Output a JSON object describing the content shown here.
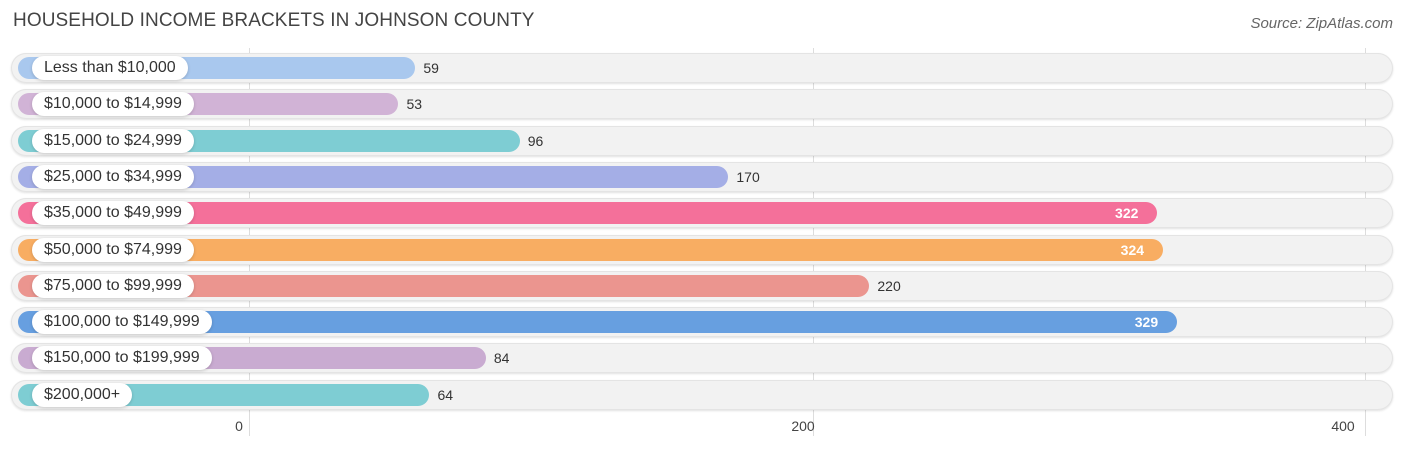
{
  "header": {
    "title": "HOUSEHOLD INCOME BRACKETS IN JOHNSON COUNTY",
    "source": "Source: ZipAtlas.com"
  },
  "chart_data": {
    "type": "bar",
    "orientation": "horizontal",
    "title": "HOUSEHOLD INCOME BRACKETS IN JOHNSON COUNTY",
    "categories": [
      "Less than $10,000",
      "$10,000 to $14,999",
      "$15,000 to $24,999",
      "$25,000 to $34,999",
      "$35,000 to $49,999",
      "$50,000 to $74,999",
      "$75,000 to $99,999",
      "$100,000 to $149,999",
      "$150,000 to $199,999",
      "$200,000+"
    ],
    "values": [
      59,
      53,
      96,
      170,
      322,
      324,
      220,
      329,
      84,
      64
    ],
    "value_labels": [
      "59",
      "53",
      "96",
      "170",
      "322",
      "324",
      "220",
      "329",
      "84",
      "64"
    ],
    "colors": [
      "#a9c8ee",
      "#d1b3d6",
      "#7ecdd3",
      "#a4aee6",
      "#f4709a",
      "#f8ad62",
      "#eb958f",
      "#679fe0",
      "#c9abd1",
      "#7ecdd3"
    ],
    "xlim": [
      0,
      400
    ],
    "x_ticks": [
      0,
      200,
      400
    ],
    "x_tick_labels": [
      "0",
      "200",
      "400"
    ],
    "grid": true
  }
}
